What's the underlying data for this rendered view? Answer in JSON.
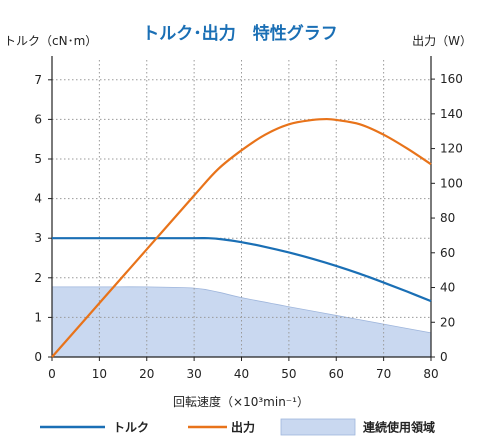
{
  "chart_data": {
    "type": "line",
    "title": "トルク･出力　特性グラフ",
    "xlabel": "回転速度（×10³min⁻¹）",
    "ylabel_left": "トルク（cN･m）",
    "ylabel_right": "出力（W）",
    "xlim": [
      0,
      80
    ],
    "ylim_left": [
      0,
      7.5
    ],
    "ylim_right": [
      0,
      171
    ],
    "x_ticks": [
      "0",
      "10",
      "20",
      "30",
      "40",
      "50",
      "60",
      "70",
      "80"
    ],
    "y_left_ticks": [
      "0",
      "1",
      "2",
      "3",
      "4",
      "5",
      "6",
      "7"
    ],
    "y_right_ticks": [
      "0",
      "20",
      "40",
      "60",
      "80",
      "100",
      "120",
      "140",
      "160"
    ],
    "grid": true,
    "series": [
      {
        "name": "トルク",
        "axis": "left",
        "color": "#1a6fb5",
        "x": [
          0,
          10,
          20,
          30,
          33,
          36,
          40,
          45,
          50,
          55,
          60,
          65,
          70,
          75,
          80
        ],
        "y": [
          3.0,
          3.0,
          3.0,
          3.0,
          3.0,
          2.97,
          2.9,
          2.78,
          2.64,
          2.48,
          2.3,
          2.1,
          1.88,
          1.65,
          1.41
        ]
      },
      {
        "name": "出力",
        "axis": "right",
        "color": "#e8731a",
        "x": [
          0,
          10,
          20,
          30,
          35,
          40,
          45,
          50,
          55,
          58,
          60,
          65,
          70,
          75,
          80
        ],
        "y": [
          0,
          31,
          62,
          93,
          108,
          119,
          128,
          134,
          136.5,
          137,
          136.5,
          134,
          128,
          120,
          111
        ]
      },
      {
        "name": "連続使用領域",
        "axis": "left",
        "type": "area",
        "color": "#c9d8f0",
        "x": [
          0,
          10,
          20,
          30,
          35,
          40,
          50,
          60,
          70,
          80
        ],
        "y": [
          1.77,
          1.77,
          1.77,
          1.74,
          1.64,
          1.5,
          1.27,
          1.05,
          0.83,
          0.61
        ]
      }
    ],
    "legend": {
      "placement": "bottom",
      "items": [
        {
          "label": "トルク",
          "kind": "line",
          "color": "#1a6fb5"
        },
        {
          "label": "出力",
          "kind": "line",
          "color": "#e8731a"
        },
        {
          "label": "連続使用領域",
          "kind": "area",
          "color": "#c9d8f0"
        }
      ]
    }
  }
}
